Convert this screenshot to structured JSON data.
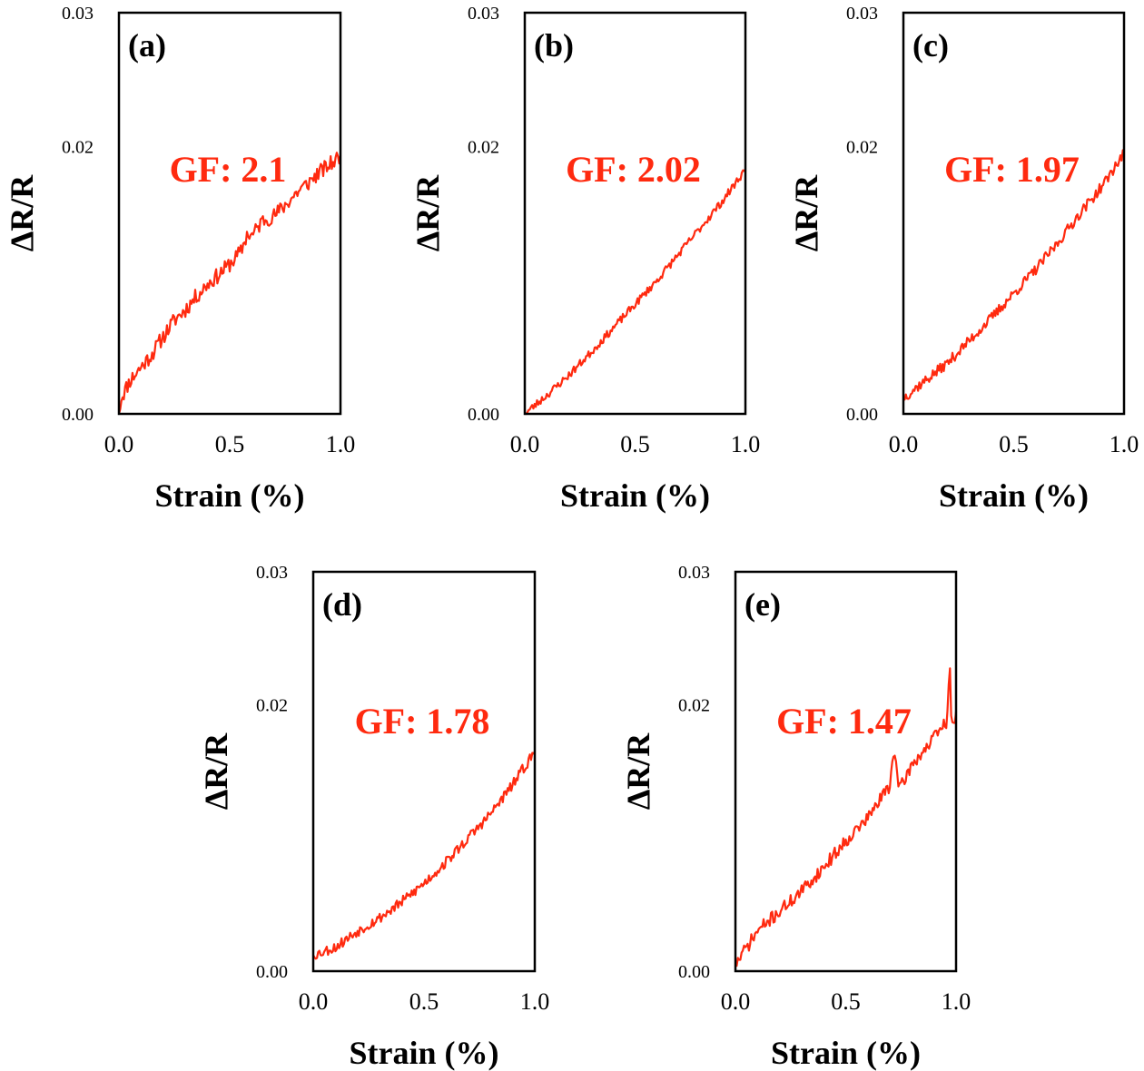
{
  "figure": {
    "series_color": "#ff2a0f",
    "label_color": "#ff2a0f"
  },
  "chart_data": [
    {
      "type": "line",
      "panel_label": "(a)",
      "annotation": "GF: 2.1",
      "xlabel": "Strain (%)",
      "ylabel": "ΔR/R",
      "xlim": [
        0.0,
        1.0
      ],
      "ylim": [
        0.0,
        0.03
      ],
      "xticks": [
        "0.0",
        "0.5",
        "1.0"
      ],
      "yticks": [
        "0.00",
        "0.02",
        "0.03"
      ],
      "ytick_values": [
        0.0,
        0.02,
        0.03
      ],
      "grid": false,
      "series": [
        {
          "name": "ΔR/R",
          "start": 0.0,
          "end": 0.0193,
          "noise": 0.0006,
          "seed": 11,
          "x": [
            0.0,
            0.01,
            0.05,
            0.1,
            0.15,
            0.2,
            0.25,
            0.3,
            0.35,
            0.4,
            0.45,
            0.5,
            0.55,
            0.58,
            0.6,
            0.65,
            0.7,
            0.75,
            0.8,
            0.85,
            0.9,
            0.95,
            1.0
          ],
          "y": [
            0.0,
            0.0012,
            0.0025,
            0.0035,
            0.0045,
            0.0058,
            0.007,
            0.0078,
            0.0088,
            0.0097,
            0.0104,
            0.0112,
            0.0121,
            0.0135,
            0.0133,
            0.0145,
            0.0148,
            0.0156,
            0.0165,
            0.0172,
            0.018,
            0.0186,
            0.0193
          ]
        }
      ]
    },
    {
      "type": "line",
      "panel_label": "(b)",
      "annotation": "GF: 2.02",
      "xlabel": "Strain (%)",
      "ylabel": "ΔR/R",
      "xlim": [
        0.0,
        1.0
      ],
      "ylim": [
        0.0,
        0.03
      ],
      "xticks": [
        "0.0",
        "0.5",
        "1.0"
      ],
      "yticks": [
        "0.00",
        "0.02",
        "0.03"
      ],
      "ytick_values": [
        0.0,
        0.02,
        0.03
      ],
      "grid": false,
      "series": [
        {
          "name": "ΔR/R",
          "start": 0.0,
          "end": 0.0183,
          "noise": 0.0003,
          "seed": 23,
          "x": [
            0.0,
            0.1,
            0.2,
            0.3,
            0.4,
            0.5,
            0.6,
            0.7,
            0.8,
            0.9,
            1.0
          ],
          "y": [
            0.0,
            0.0014,
            0.0029,
            0.0046,
            0.0064,
            0.0082,
            0.01,
            0.012,
            0.014,
            0.016,
            0.0183
          ]
        }
      ]
    },
    {
      "type": "line",
      "panel_label": "(c)",
      "annotation": "GF: 1.97",
      "xlabel": "Strain (%)",
      "ylabel": "ΔR/R",
      "xlim": [
        0.0,
        1.0
      ],
      "ylim": [
        0.0,
        0.03
      ],
      "xticks": [
        "0.0",
        "0.5",
        "1.0"
      ],
      "yticks": [
        "0.00",
        "0.02",
        "0.03"
      ],
      "ytick_values": [
        0.0,
        0.02,
        0.03
      ],
      "grid": false,
      "series": [
        {
          "name": "ΔR/R",
          "start": 0.0012,
          "end": 0.0195,
          "noise": 0.0004,
          "seed": 37,
          "x": [
            0.0,
            0.1,
            0.2,
            0.3,
            0.4,
            0.5,
            0.6,
            0.7,
            0.8,
            0.9,
            1.0
          ],
          "y": [
            0.0012,
            0.0025,
            0.0038,
            0.0055,
            0.0072,
            0.009,
            0.0108,
            0.0128,
            0.015,
            0.017,
            0.0195
          ]
        }
      ]
    },
    {
      "type": "line",
      "panel_label": "(d)",
      "annotation": "GF: 1.78",
      "xlabel": "Strain (%)",
      "ylabel": "ΔR/R",
      "xlim": [
        0.0,
        1.0
      ],
      "ylim": [
        0.0,
        0.03
      ],
      "xticks": [
        "0.0",
        "0.5",
        "1.0"
      ],
      "yticks": [
        "0.00",
        "0.02",
        "0.03"
      ],
      "ytick_values": [
        0.0,
        0.02,
        0.03
      ],
      "grid": false,
      "series": [
        {
          "name": "ΔR/R",
          "start": 0.0012,
          "end": 0.0165,
          "noise": 0.0004,
          "seed": 53,
          "x": [
            0.0,
            0.1,
            0.2,
            0.3,
            0.4,
            0.5,
            0.6,
            0.7,
            0.8,
            0.9,
            1.0
          ],
          "y": [
            0.0012,
            0.0018,
            0.003,
            0.004,
            0.0052,
            0.0066,
            0.0082,
            0.01,
            0.0118,
            0.014,
            0.0165
          ]
        }
      ]
    },
    {
      "type": "line",
      "panel_label": "(e)",
      "annotation": "GF: 1.47",
      "xlabel": "Strain (%)",
      "ylabel": "ΔR/R",
      "xlim": [
        0.0,
        1.0
      ],
      "ylim": [
        0.0,
        0.03
      ],
      "xticks": [
        "0.0",
        "0.5",
        "1.0"
      ],
      "yticks": [
        "0.00",
        "0.02",
        "0.03"
      ],
      "ytick_values": [
        0.0,
        0.02,
        0.03
      ],
      "grid": false,
      "series": [
        {
          "name": "ΔR/R",
          "start": 0.0005,
          "end": 0.0195,
          "noise": 0.0005,
          "seed": 71,
          "x": [
            0.0,
            0.1,
            0.2,
            0.3,
            0.4,
            0.5,
            0.6,
            0.7,
            0.72,
            0.74,
            0.8,
            0.9,
            0.96,
            0.97,
            0.98,
            1.0
          ],
          "y": [
            0.0005,
            0.003,
            0.0045,
            0.006,
            0.0078,
            0.0098,
            0.0115,
            0.014,
            0.017,
            0.0135,
            0.0155,
            0.0175,
            0.0188,
            0.0235,
            0.018,
            0.0195
          ]
        }
      ]
    }
  ]
}
